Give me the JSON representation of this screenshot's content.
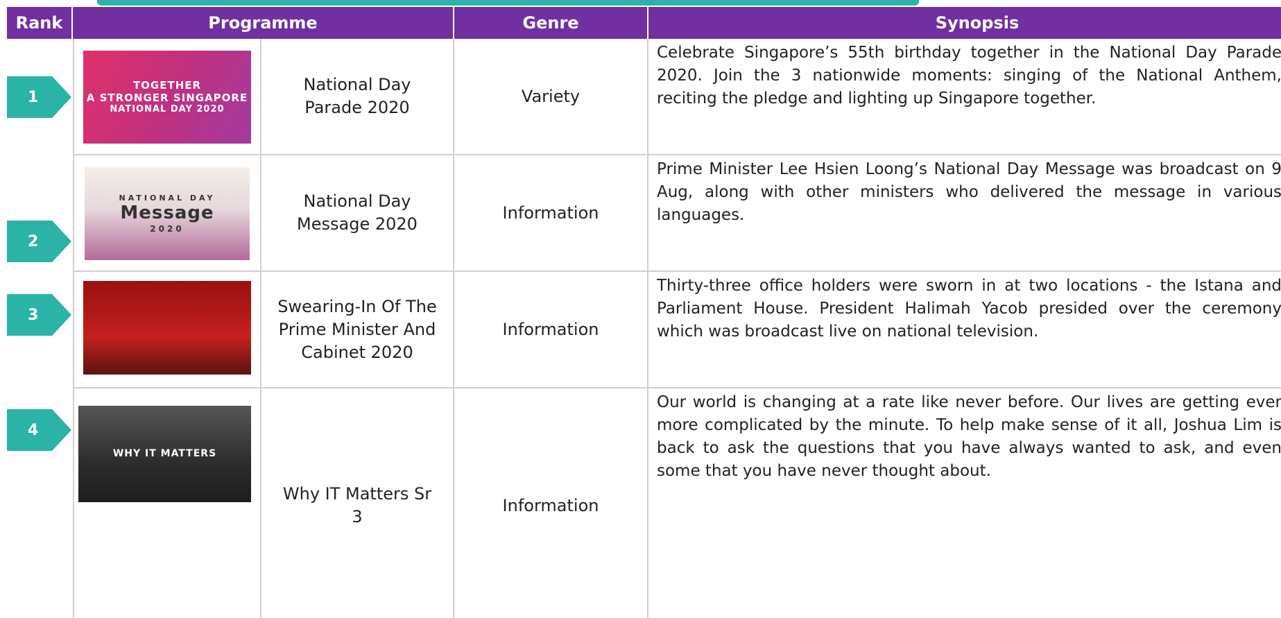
{
  "table": {
    "headers": [
      "Rank",
      "Programme",
      "Genre",
      "Synopsis"
    ],
    "rows": [
      {
        "rank": "1",
        "thumbnail_text": [
          "TOGETHER",
          "A STRONGER SINGAPORE",
          "NATIONAL DAY 2020"
        ],
        "programme": "National Day Parade 2020",
        "genre": "Variety",
        "synopsis": "Celebrate Singapore’s 55th birthday together in the National Day Parade 2020. Join the 3 nationwide moments: singing of the National Anthem, reciting the pledge and lighting up Singapore together."
      },
      {
        "rank": "2",
        "thumbnail_text": [
          "NATIONAL DAY",
          "Message",
          "2020"
        ],
        "programme": "National Day Message 2020",
        "genre": "Information",
        "synopsis": "Prime Minister Lee Hsien Loong’s National Day Message was broadcast on 9 Aug, along with other ministers who delivered the message in various languages."
      },
      {
        "rank": "3",
        "thumbnail_text": [],
        "programme": "Swearing-In Of The Prime Minister And Cabinet 2020",
        "genre": "Information",
        "synopsis": "Thirty-three office holders were sworn in at two locations - the Istana and Parliament House. President Halimah Yacob presided over the ceremony which was broadcast live on national television."
      },
      {
        "rank": "4",
        "thumbnail_text": [
          "WHY IT MATTERS"
        ],
        "programme": "Why IT Matters Sr 3",
        "genre": "Information",
        "synopsis": "Our world is changing at a rate like never before. Our lives are getting ever more complicated by the minute. To help make sense of it all, Joshua Lim is back to ask the questions that you have always wanted to ask, and even some that you have never thought about."
      }
    ]
  }
}
